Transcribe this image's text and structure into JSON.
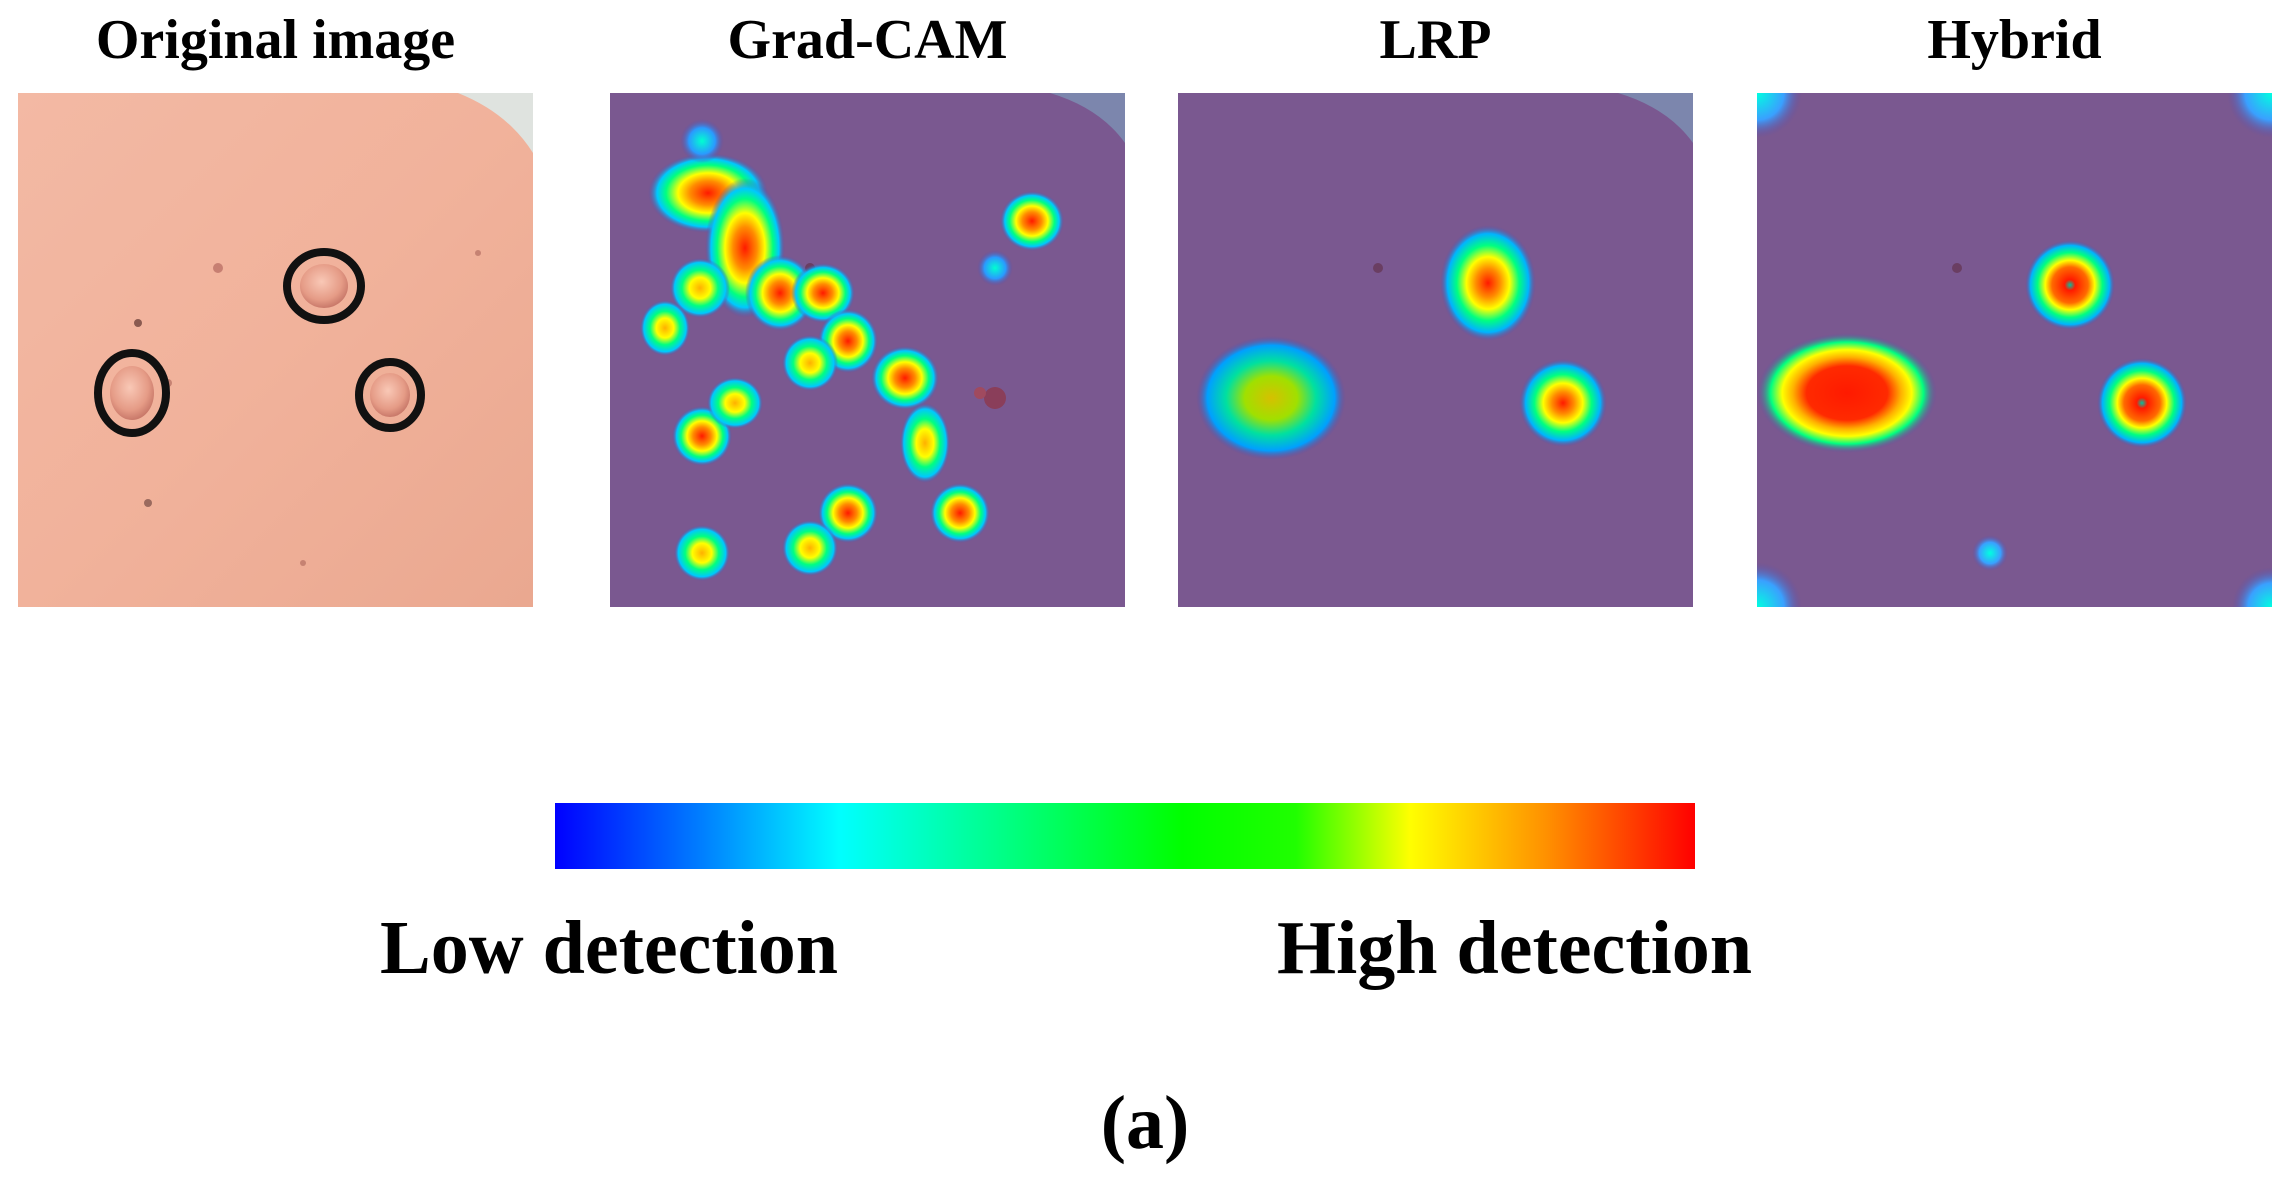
{
  "panels": [
    {
      "title": "Original image"
    },
    {
      "title": "Grad-CAM"
    },
    {
      "title": "LRP"
    },
    {
      "title": "Hybrid"
    }
  ],
  "colorbar": {
    "low_label": "Low detection",
    "high_label": "High detection",
    "colors": [
      "#0000ff",
      "#00ffff",
      "#00ff00",
      "#ffff00",
      "#ff0000"
    ]
  },
  "caption": "(a)"
}
